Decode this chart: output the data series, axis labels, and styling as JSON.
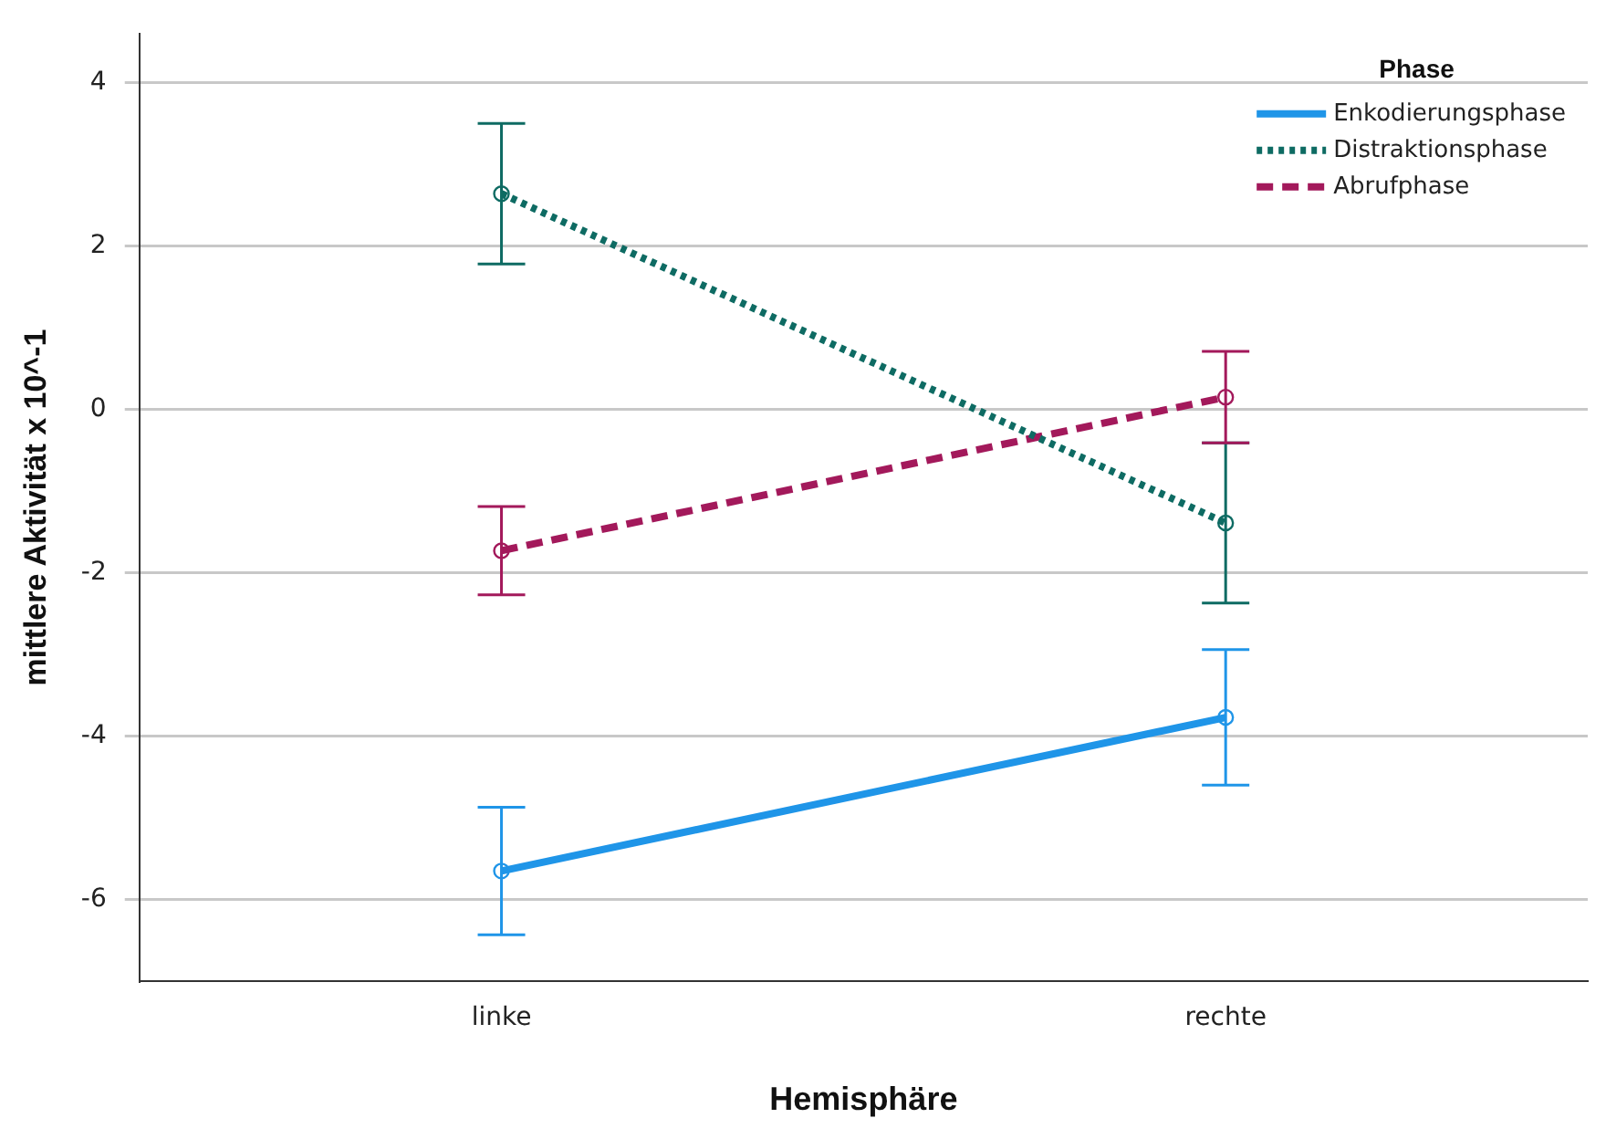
{
  "chart_data": {
    "type": "line",
    "xlabel": "Hemisphäre",
    "ylabel": "mittlere Aktivität x 10^-1",
    "legend_title": "Phase",
    "legend": "top right",
    "grid": "y",
    "marker": "circle",
    "categories": [
      "linke",
      "rechte"
    ],
    "ylim": [
      -7,
      4.6
    ],
    "yticks": [
      -6,
      -4,
      -2,
      0,
      2,
      4
    ],
    "series": [
      {
        "name": "Enkodierungsphase",
        "color": "#1f95e8",
        "line_style": "solid",
        "values": [
          -5.65,
          -3.77
        ],
        "errors": [
          0.78,
          0.83
        ]
      },
      {
        "name": "Distraktionsphase",
        "color": "#0e6b63",
        "line_style": "dotted",
        "values": [
          2.64,
          -1.39
        ],
        "errors": [
          0.86,
          0.98
        ]
      },
      {
        "name": "Abrufphase",
        "color": "#a3195b",
        "line_style": "dashed",
        "values": [
          -1.73,
          0.15
        ],
        "errors": [
          0.54,
          0.56
        ]
      }
    ]
  }
}
